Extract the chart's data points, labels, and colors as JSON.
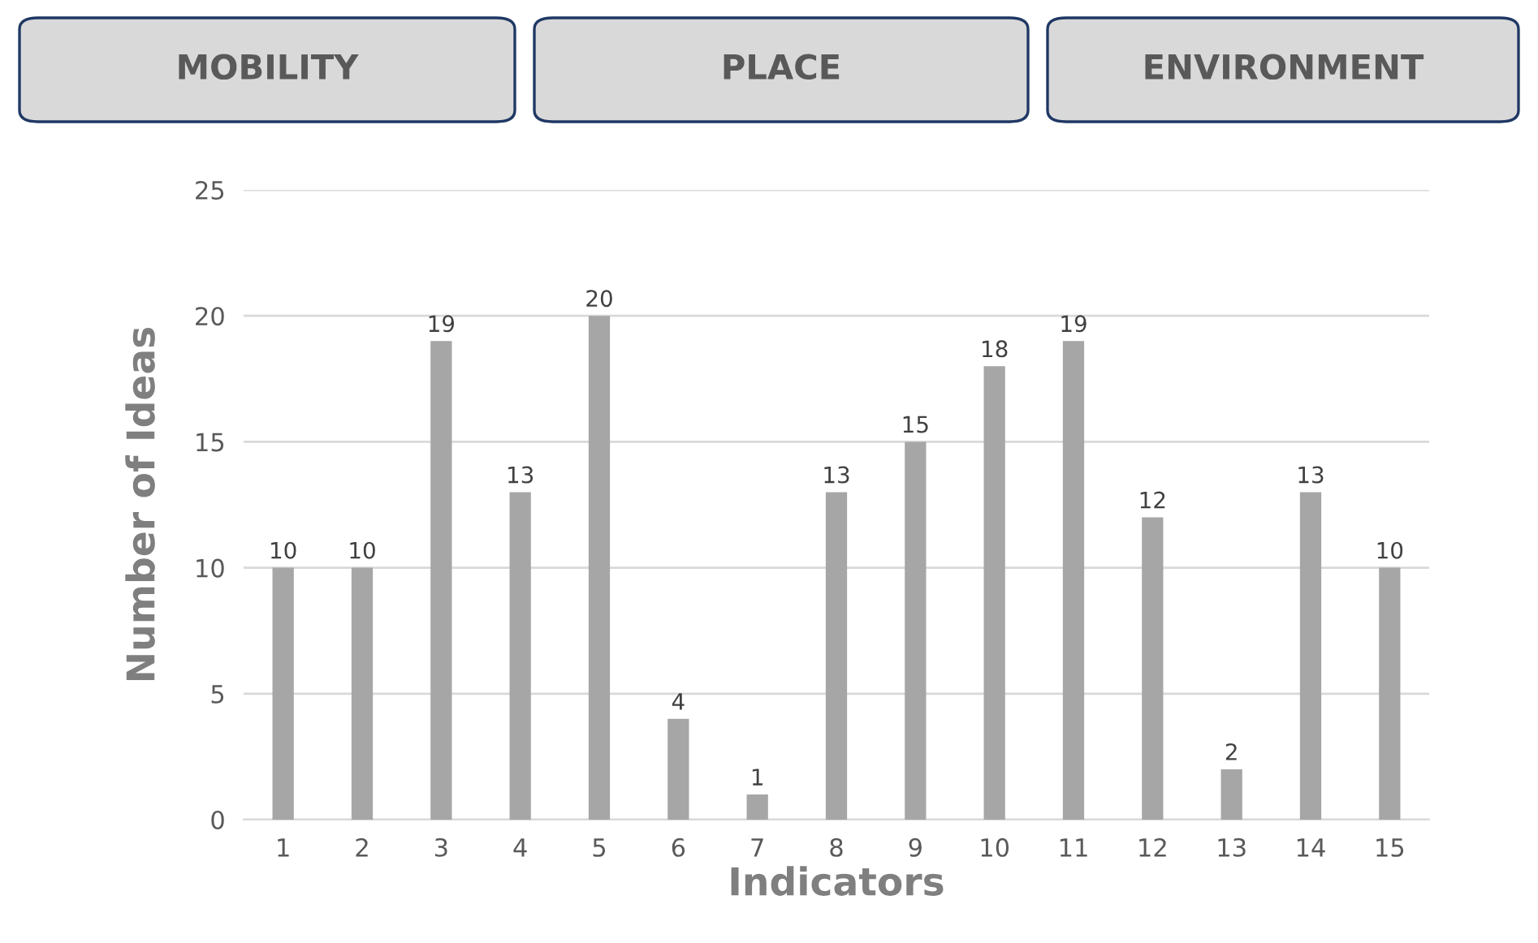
{
  "chart_data": {
    "type": "bar",
    "xlabel": "Indicators",
    "ylabel": "Number of Ideas",
    "annotations": [
      "MOBILITY",
      "PLACE",
      "ENVIRONMENT"
    ],
    "categories": [
      "1",
      "2",
      "3",
      "4",
      "5",
      "6",
      "7",
      "8",
      "9",
      "10",
      "11",
      "12",
      "13",
      "14",
      "15"
    ],
    "values": [
      10,
      10,
      19,
      13,
      20,
      4,
      1,
      13,
      15,
      18,
      19,
      12,
      2,
      13,
      10
    ],
    "color": "#a6a6a6",
    "data_labels": true,
    "ylim": [
      0,
      25
    ],
    "yticks": [
      0,
      5,
      10,
      15,
      20,
      25
    ],
    "grid": "y",
    "legend": false
  }
}
